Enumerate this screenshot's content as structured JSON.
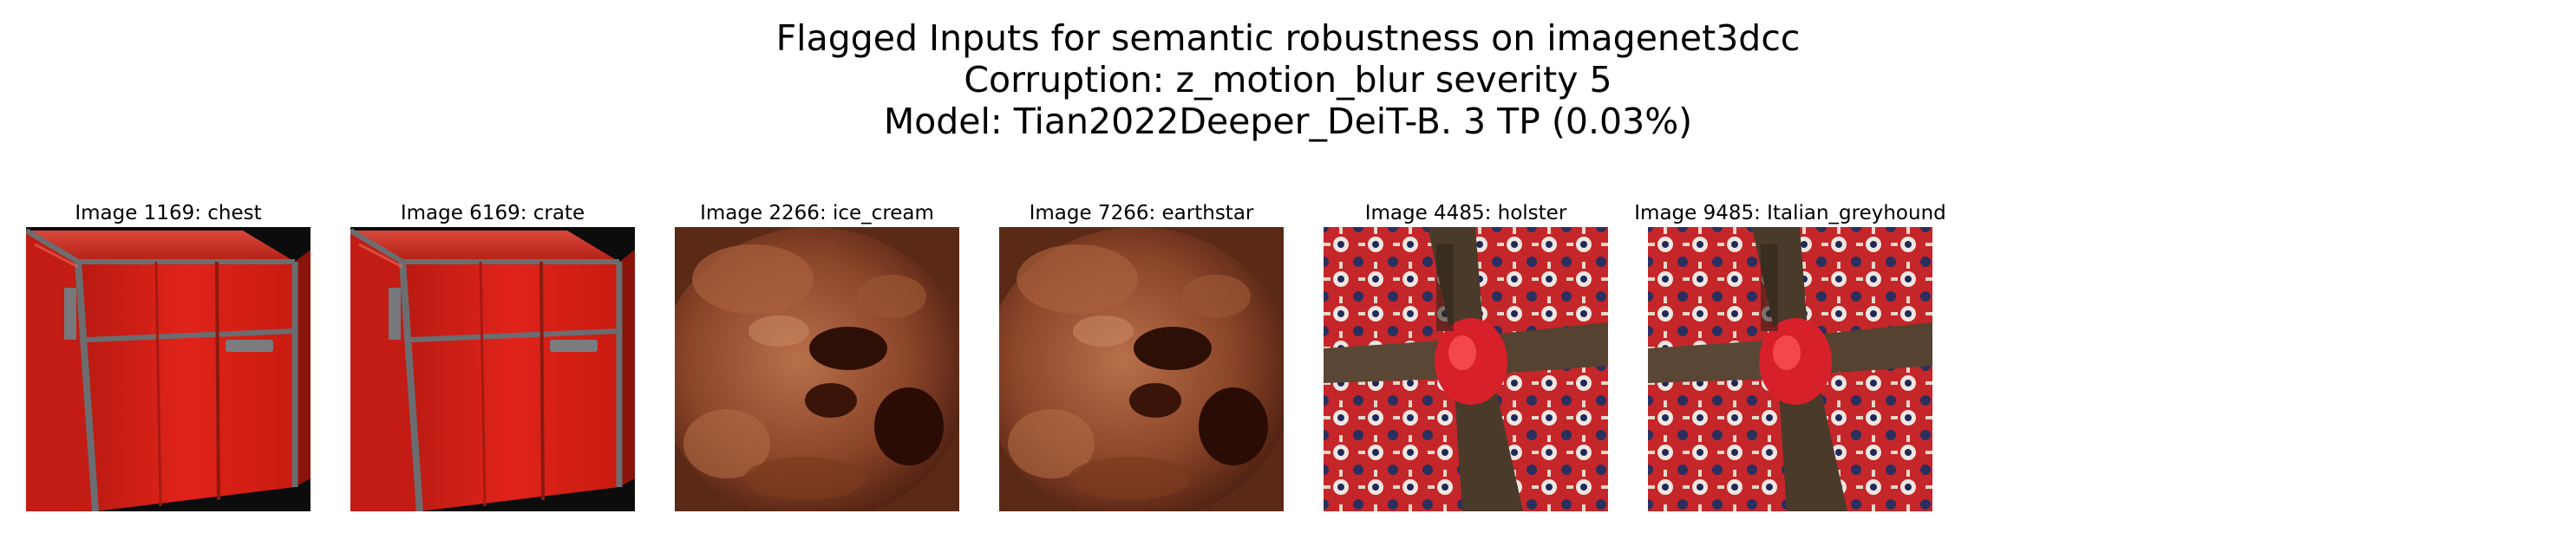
{
  "title": {
    "line1": "Flagged Inputs for semantic robustness on imagenet3dcc",
    "line2": "Corruption: z_motion_blur severity 5",
    "line3": "Model: Tian2022Deeper_DeiT-B. 3 TP (0.03%)"
  },
  "images": [
    {
      "caption": "Image 1169: chest"
    },
    {
      "caption": "Image 6169: crate"
    },
    {
      "caption": "Image 2266: ice_cream"
    },
    {
      "caption": "Image 7266: earthstar"
    },
    {
      "caption": "Image 4485: holster"
    },
    {
      "caption": "Image 9485: Italian_greyhound"
    }
  ]
}
